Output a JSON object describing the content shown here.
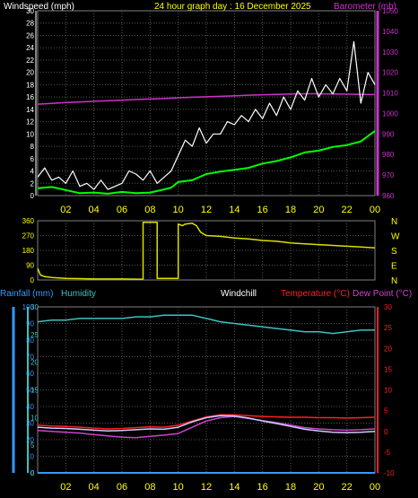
{
  "header": {
    "windspeed_title": "Windspeed (mph)",
    "main_title": "24 hour graph day : 16 December 2025",
    "barometer_title": "Barometer (mb)"
  },
  "bottom_header": {
    "rainfall": "Rainfall (mm)",
    "humidity": "Humidity",
    "windchill": "Windchill",
    "temperature": "Temperature (°C)",
    "dewpoint": "Dew Point (°C)"
  },
  "colors": {
    "wind": "#ffffff",
    "gust": "#ffffff",
    "average": "#00ff00",
    "barometer": "#cc33cc",
    "direction": "#dddd00",
    "humidity": "#40c0c0",
    "temperature": "#ff2020",
    "dewpoint": "#cc44cc",
    "windchill": "#ccccff",
    "rainfall": "#3399ff",
    "hour_labels": "#ffff00"
  },
  "x_hours": [
    "02",
    "04",
    "06",
    "08",
    "10",
    "12",
    "14",
    "16",
    "18",
    "20",
    "22",
    "00"
  ],
  "chart_data": [
    {
      "type": "line",
      "name": "wind",
      "left_axis": {
        "label": "Windspeed (mph)",
        "ylim": [
          0,
          30
        ],
        "ticks": [
          "0",
          "2",
          "4",
          "6",
          "8",
          "10",
          "12",
          "14",
          "16",
          "18",
          "20",
          "22",
          "24",
          "26",
          "28",
          "30"
        ]
      },
      "right_axis": {
        "label": "Barometer (mb)",
        "ylim": [
          960,
          1050
        ],
        "ticks": [
          "960",
          "970",
          "980",
          "990",
          "1000",
          "1010",
          "1020",
          "1030",
          "1040",
          "1050"
        ]
      },
      "series": [
        {
          "name": "wind_avg",
          "x": [
            0,
            1,
            2,
            3,
            4,
            5,
            6,
            7,
            8,
            9,
            9.5,
            10,
            11,
            12,
            13,
            14,
            15,
            16,
            17,
            18,
            19,
            20,
            21,
            22,
            23,
            24
          ],
          "values": [
            1.2,
            1.4,
            0.9,
            0.4,
            0.5,
            0.3,
            0.6,
            0.4,
            0.5,
            1.0,
            1.3,
            2.2,
            2.5,
            3.5,
            3.9,
            4.2,
            4.5,
            5.2,
            5.6,
            6.2,
            7.0,
            7.3,
            7.9,
            8.2,
            8.8,
            10.5
          ]
        },
        {
          "name": "wind_gust",
          "x": [
            0,
            0.5,
            1,
            1.5,
            2,
            2.5,
            3,
            3.5,
            4,
            4.5,
            5,
            5.5,
            6,
            6.5,
            7,
            7.5,
            8,
            8.5,
            9,
            9.5,
            10,
            10.5,
            11,
            11.5,
            12,
            12.5,
            13,
            13.5,
            14,
            14.5,
            15,
            15.5,
            16,
            16.5,
            17,
            17.5,
            18,
            18.5,
            19,
            19.5,
            20,
            20.5,
            21,
            21.5,
            22,
            22.5,
            23,
            23.5,
            24
          ],
          "values": [
            3,
            4.5,
            2.5,
            3,
            2,
            4,
            1.5,
            2,
            1,
            2.5,
            1,
            1.5,
            2,
            4,
            3.5,
            2.5,
            4,
            2,
            3,
            4,
            6.5,
            9,
            8,
            11,
            8.5,
            10,
            10,
            12,
            11.5,
            13,
            12,
            14,
            12.5,
            15,
            13,
            16,
            14,
            17,
            15.5,
            19,
            16,
            18,
            16.5,
            19,
            17,
            25,
            15,
            20,
            18
          ]
        },
        {
          "name": "barometer",
          "x": [
            0,
            1,
            2,
            3,
            4,
            5,
            6,
            7,
            8,
            9,
            10,
            11,
            12,
            13,
            14,
            15,
            16,
            17,
            18,
            19,
            20,
            21,
            22,
            23,
            24
          ],
          "values": [
            1004.5,
            1004.9,
            1005.3,
            1005.6,
            1005.9,
            1006.2,
            1006.5,
            1006.8,
            1007.0,
            1007.3,
            1007.6,
            1007.9,
            1008.1,
            1008.3,
            1008.6,
            1008.9,
            1009.1,
            1009.3,
            1009.5,
            1009.6,
            1009.6,
            1009.5,
            1009.4,
            1009.3,
            1009.2
          ]
        }
      ]
    },
    {
      "type": "line",
      "name": "wind_direction",
      "left_axis": {
        "ylim": [
          0,
          360
        ],
        "ticks": [
          "0",
          "90",
          "180",
          "270",
          "360"
        ]
      },
      "right_axis": {
        "ticks": [
          "N",
          "E",
          "S",
          "W",
          "N"
        ]
      },
      "series": [
        {
          "name": "direction",
          "x": [
            0,
            0.2,
            0.5,
            1,
            2,
            3,
            4,
            5,
            6,
            7,
            7.5,
            7.5,
            8.5,
            8.5,
            10,
            10,
            10.3,
            10.5,
            11,
            11.3,
            11.6,
            12,
            13,
            14,
            15,
            16,
            17,
            18,
            19,
            20,
            21,
            22,
            23,
            24
          ],
          "values": [
            70,
            30,
            20,
            15,
            10,
            8,
            6,
            6,
            6,
            5,
            5,
            350,
            350,
            10,
            10,
            340,
            330,
            340,
            345,
            330,
            290,
            270,
            265,
            255,
            250,
            240,
            235,
            225,
            220,
            215,
            210,
            205,
            200,
            195
          ]
        }
      ]
    },
    {
      "type": "line",
      "name": "temperature_humidity",
      "left_axis": {
        "label": "Rainfall (mm)",
        "ylim": [
          0,
          100
        ],
        "ticks": [
          "0",
          "10",
          "20",
          "30",
          "40",
          "50",
          "60",
          "70",
          "80",
          "90",
          "100"
        ]
      },
      "left_axis_2": {
        "label": "Humidity",
        "ylim": [
          0,
          30
        ],
        "ticks": [
          "0",
          "5",
          "10",
          "15",
          "20",
          "25",
          "30"
        ]
      },
      "right_axis": {
        "label": "Temperature (°C)",
        "ylim": [
          -10,
          30
        ],
        "ticks": [
          "-10",
          "-5",
          "0",
          "5",
          "10",
          "15",
          "20",
          "25",
          "30"
        ]
      },
      "series": [
        {
          "name": "humidity",
          "x": [
            0,
            1,
            2,
            3,
            4,
            5,
            6,
            7,
            8,
            9,
            10,
            11,
            12,
            13,
            14,
            15,
            16,
            17,
            18,
            19,
            20,
            21,
            22,
            23,
            24
          ],
          "values": [
            91,
            92,
            92,
            93,
            93,
            93,
            93,
            94,
            94,
            95,
            95,
            95,
            93,
            91,
            90,
            89,
            88,
            87,
            86,
            85,
            85,
            84,
            85,
            86,
            86
          ]
        },
        {
          "name": "temperature",
          "x": [
            0,
            1,
            2,
            3,
            4,
            5,
            6,
            7,
            8,
            9,
            10,
            11,
            12,
            13,
            14,
            15,
            16,
            17,
            18,
            19,
            20,
            21,
            22,
            23,
            24
          ],
          "values": [
            1.5,
            1.3,
            1.2,
            1.0,
            0.8,
            0.6,
            0.7,
            0.9,
            1.1,
            1.0,
            1.5,
            2.5,
            3.5,
            4.0,
            4.0,
            3.8,
            3.6,
            3.5,
            3.4,
            3.4,
            3.3,
            3.3,
            3.2,
            3.3,
            3.4
          ]
        },
        {
          "name": "dewpoint",
          "x": [
            0,
            1,
            2,
            3,
            4,
            5,
            6,
            7,
            8,
            9,
            10,
            11,
            12,
            13,
            14,
            15,
            16,
            17,
            18,
            19,
            20,
            21,
            22,
            23,
            24
          ],
          "values": [
            0.2,
            0.0,
            -0.2,
            -0.4,
            -0.8,
            -1.1,
            -1.4,
            -1.5,
            -1.2,
            -0.9,
            -0.5,
            1.0,
            2.5,
            3.3,
            3.6,
            3.1,
            2.6,
            2.1,
            1.5,
            0.9,
            0.6,
            0.4,
            0.3,
            0.4,
            0.6
          ]
        },
        {
          "name": "windchill",
          "x": [
            0,
            1,
            2,
            3,
            4,
            5,
            6,
            7,
            8,
            9,
            10,
            11,
            12,
            13,
            14,
            15,
            16,
            17,
            18,
            19,
            20,
            21,
            22,
            23,
            24
          ],
          "values": [
            1.0,
            0.8,
            0.7,
            0.5,
            0.3,
            0.1,
            0.2,
            0.4,
            0.6,
            0.5,
            1.0,
            2.3,
            3.3,
            3.8,
            3.7,
            3.2,
            2.5,
            1.9,
            1.2,
            0.5,
            0.1,
            -0.2,
            -0.3,
            -0.2,
            0.0
          ]
        },
        {
          "name": "rainfall",
          "x": [
            0,
            24
          ],
          "values": [
            0,
            0
          ]
        }
      ]
    }
  ]
}
